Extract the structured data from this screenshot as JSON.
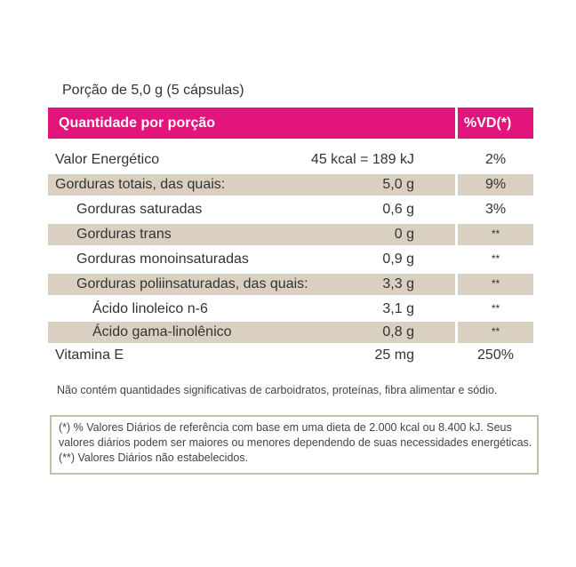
{
  "portion": "Porção de 5,0 g (5 cápsulas)",
  "header": {
    "quantity": "Quantidade por porção",
    "vd": "%VD(*)"
  },
  "rows": [
    {
      "name": "Valor Energético",
      "amount": "45 kcal = 189 kJ",
      "vd": "2%"
    },
    {
      "name": "Gorduras totais, das quais:",
      "amount": "5,0 g",
      "vd": "9%"
    },
    {
      "name": "Gorduras saturadas",
      "amount": "0,6 g",
      "vd": "3%"
    },
    {
      "name": "Gorduras trans",
      "amount": "0 g",
      "vd": "**"
    },
    {
      "name": "Gorduras monoinsaturadas",
      "amount": "0,9 g",
      "vd": "**"
    },
    {
      "name": "Gorduras poliinsaturadas, das quais:",
      "amount": "3,3 g",
      "vd": "**"
    },
    {
      "name": "Ácido linoleico n-6",
      "amount": "3,1 g",
      "vd": "**"
    },
    {
      "name": "Ácido gama-linolênico",
      "amount": "0,8 g",
      "vd": "**"
    },
    {
      "name": "Vitamina E",
      "amount": "25 mg",
      "vd": "250%"
    }
  ],
  "note": "Não contém quantidades significativas de carboidratos, proteínas, fibra alimentar e sódio.",
  "footnote": "(*) % Valores Diários de referência com base em uma dieta de 2.000 kcal ou 8.400 kJ. Seus valores diários podem ser maiores ou menores dependendo de suas necessidades energéticas. (**) Valores Diários não estabelecidos.",
  "colors": {
    "header": "#e4147d",
    "shade": "#d9d0c1",
    "border": "#c8bda8"
  }
}
